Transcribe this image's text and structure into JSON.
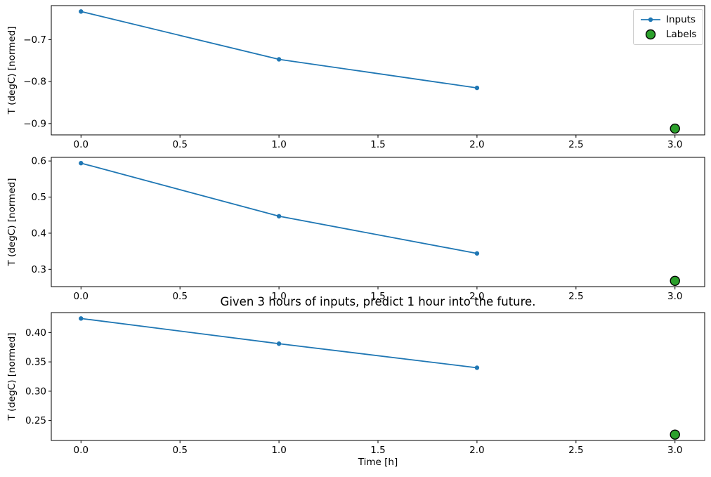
{
  "figure": {
    "title": "Given 3 hours of inputs, predict 1 hour into the future.",
    "xlabel": "Time [h]",
    "background": "#ffffff"
  },
  "colors": {
    "inputs": "#1f77b4",
    "labels": "#2ca02c",
    "label_edge": "#000000",
    "axis": "#000000"
  },
  "legend": {
    "items": [
      {
        "label": "Inputs",
        "marker": "line-dot",
        "color": "#1f77b4"
      },
      {
        "label": "Labels",
        "marker": "circle",
        "color": "#2ca02c",
        "edge_color": "#000000"
      }
    ]
  },
  "chart_data": [
    {
      "type": "line",
      "ylabel": "T (degC) [normed]",
      "grid": false,
      "xlim": [
        -0.15,
        3.15
      ],
      "ylim": [
        -0.927,
        -0.619
      ],
      "xticks": {
        "values": [
          0,
          0.5,
          1,
          1.5,
          2,
          2.5,
          3
        ],
        "labels": [
          "0.0",
          "0.5",
          "1.0",
          "1.5",
          "2.0",
          "2.5",
          "3.0"
        ]
      },
      "yticks": {
        "values": [
          -0.9,
          -0.8,
          -0.7
        ],
        "labels": [
          "−0.9",
          "−0.8",
          "−0.7"
        ]
      },
      "series": [
        {
          "name": "Inputs",
          "kind": "line+marker",
          "color": "#1f77b4",
          "x": [
            0,
            1,
            2
          ],
          "y": [
            -0.633,
            -0.747,
            -0.815
          ]
        },
        {
          "name": "Labels",
          "kind": "scatter",
          "color": "#2ca02c",
          "edge_color": "#000000",
          "x": [
            3
          ],
          "y": [
            -0.912
          ]
        }
      ]
    },
    {
      "type": "line",
      "ylabel": "T (degC) [normed]",
      "grid": false,
      "xlim": [
        -0.15,
        3.15
      ],
      "ylim": [
        0.252,
        0.61
      ],
      "xticks": {
        "values": [
          0,
          0.5,
          1,
          1.5,
          2,
          2.5,
          3
        ],
        "labels": [
          "0.0",
          "0.5",
          "1.0",
          "1.5",
          "2.0",
          "2.5",
          "3.0"
        ]
      },
      "yticks": {
        "values": [
          0.3,
          0.4,
          0.5,
          0.6
        ],
        "labels": [
          "0.3",
          "0.4",
          "0.5",
          "0.6"
        ]
      },
      "series": [
        {
          "name": "Inputs",
          "kind": "line+marker",
          "color": "#1f77b4",
          "x": [
            0,
            1,
            2
          ],
          "y": [
            0.594,
            0.447,
            0.344
          ]
        },
        {
          "name": "Labels",
          "kind": "scatter",
          "color": "#2ca02c",
          "edge_color": "#000000",
          "x": [
            3
          ],
          "y": [
            0.268
          ]
        }
      ]
    },
    {
      "type": "line",
      "ylabel": "T (degC) [normed]",
      "grid": false,
      "xlim": [
        -0.15,
        3.15
      ],
      "ylim": [
        0.216,
        0.434
      ],
      "xticks": {
        "values": [
          0,
          0.5,
          1,
          1.5,
          2,
          2.5,
          3
        ],
        "labels": [
          "0.0",
          "0.5",
          "1.0",
          "1.5",
          "2.0",
          "2.5",
          "3.0"
        ]
      },
      "yticks": {
        "values": [
          0.25,
          0.3,
          0.35,
          0.4
        ],
        "labels": [
          "0.25",
          "0.30",
          "0.35",
          "0.40"
        ]
      },
      "series": [
        {
          "name": "Inputs",
          "kind": "line+marker",
          "color": "#1f77b4",
          "x": [
            0,
            1,
            2
          ],
          "y": [
            0.424,
            0.381,
            0.34
          ]
        },
        {
          "name": "Labels",
          "kind": "scatter",
          "color": "#2ca02c",
          "edge_color": "#000000",
          "x": [
            3
          ],
          "y": [
            0.226
          ]
        }
      ]
    }
  ]
}
